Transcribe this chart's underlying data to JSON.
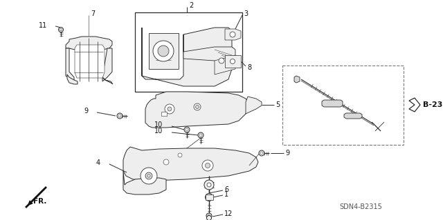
{
  "bg_color": "#ffffff",
  "fig_width": 6.4,
  "fig_height": 3.19,
  "diagram_code": "SDN4-B2315",
  "ref_label": "B-23",
  "line_color": "#2a2a2a",
  "gray_fill": "#d8d8d8",
  "light_fill": "#eeeeee"
}
